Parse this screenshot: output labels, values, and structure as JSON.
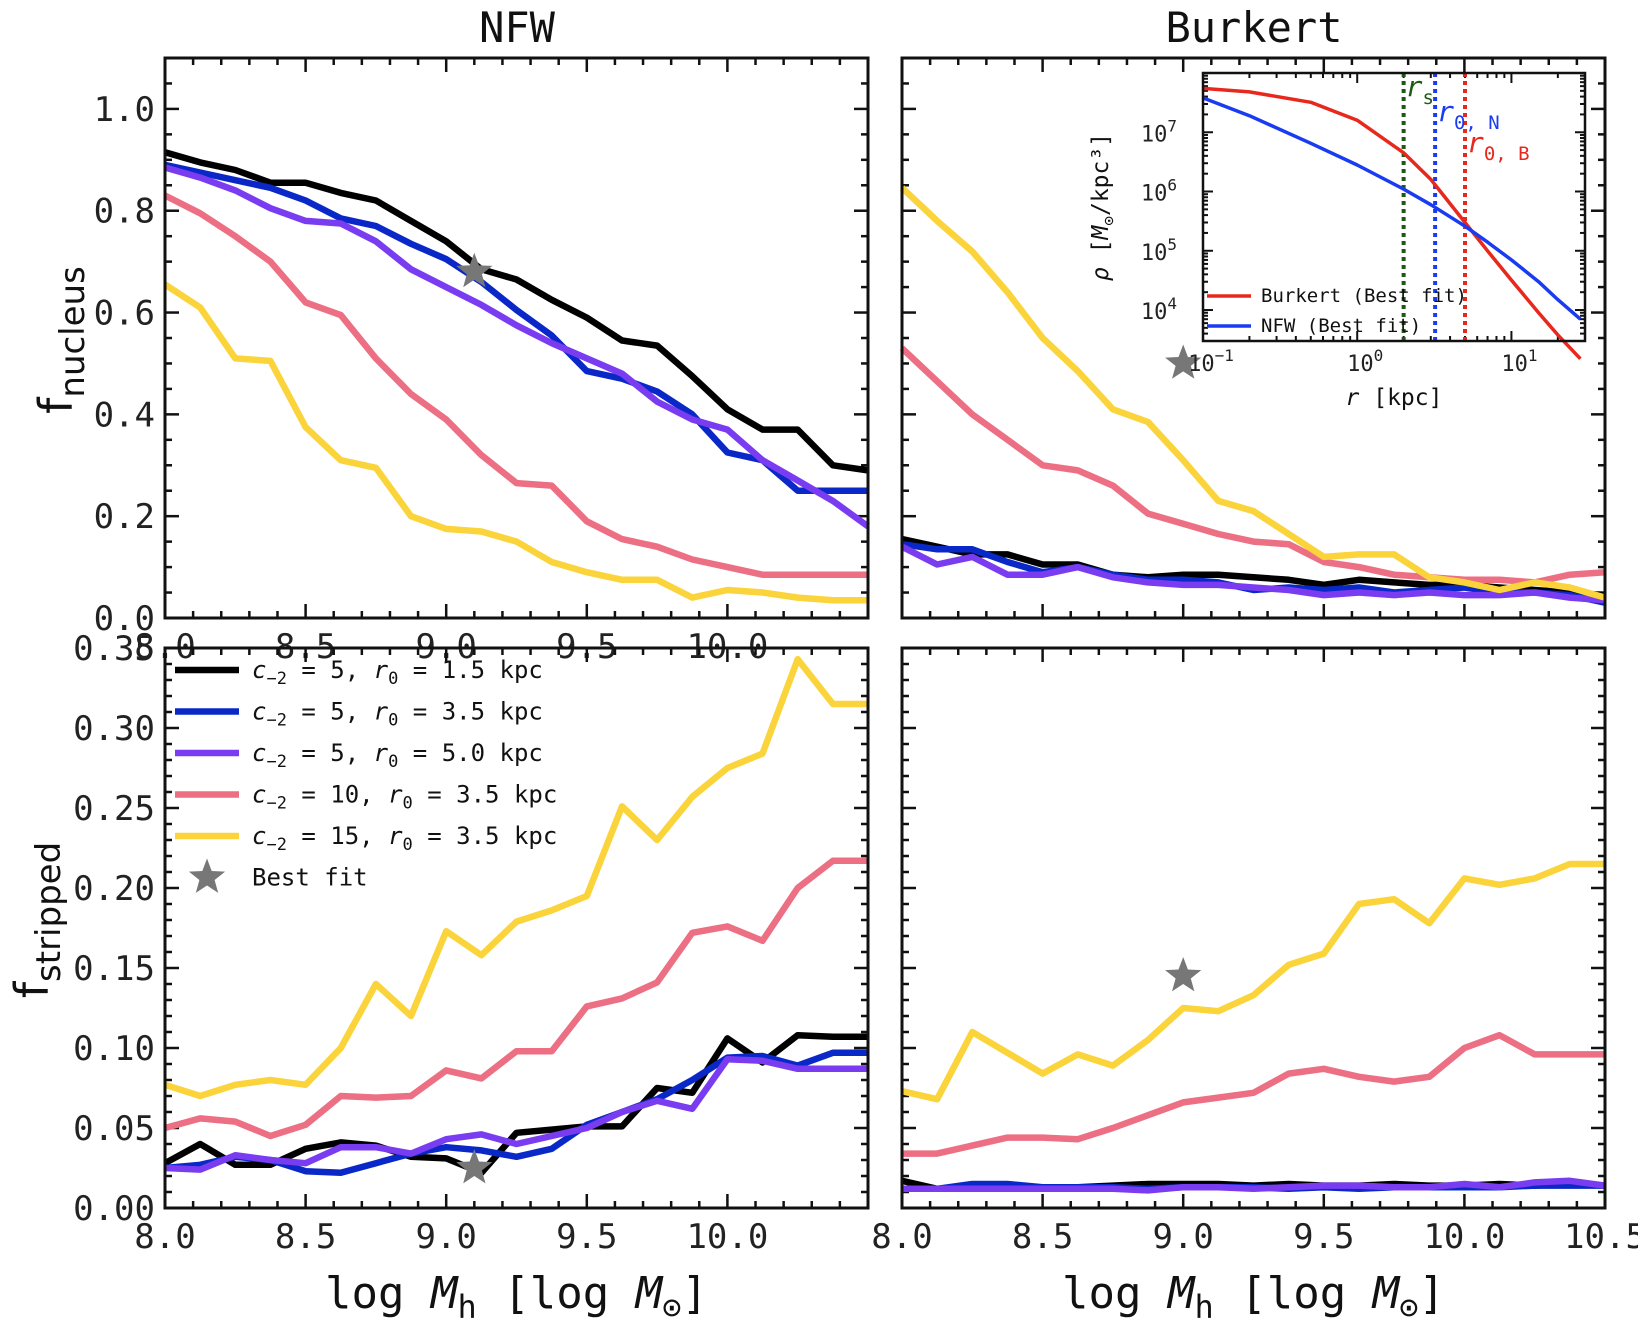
{
  "columns": {
    "left": "NFW",
    "right": "Burkert"
  },
  "axis_labels": {
    "x": "log M_h [log M_⊙]",
    "y_top": "f_nucleus",
    "y_bottom": "f_stripped"
  },
  "colors": {
    "black": "#000000",
    "blue": "#0a28c8",
    "purple": "#7a3cf0",
    "pink": "#ec6f84",
    "yellow": "#fad43a",
    "star": "#777777",
    "inset_red": "#e8281c",
    "inset_blue": "#1a3cf0",
    "inset_green": "#1e5a14"
  },
  "legend": [
    {
      "key": "black",
      "c": "5",
      "r0": "1.5"
    },
    {
      "key": "blue",
      "c": "5",
      "r0": "3.5"
    },
    {
      "key": "purple",
      "c": "5",
      "r0": "5.0"
    },
    {
      "key": "pink",
      "c": "10",
      "r0": "3.5"
    },
    {
      "key": "yellow",
      "c": "15",
      "r0": "3.5"
    },
    {
      "key": "star",
      "label": "Best fit"
    }
  ],
  "chart_data": [
    {
      "id": "nfw-nucleus",
      "type": "line",
      "column": "NFW",
      "ylabel": "f_nucleus",
      "xlim": [
        8.0,
        10.5
      ],
      "ylim": [
        0.0,
        1.1
      ],
      "xticks": [
        "8.0",
        "8.5",
        "9.0",
        "9.5",
        "10.0"
      ],
      "yticks": [
        "0.0",
        "0.2",
        "0.4",
        "0.6",
        "0.8",
        "1.0"
      ],
      "x": [
        8.0,
        8.125,
        8.25,
        8.375,
        8.5,
        8.625,
        8.75,
        8.875,
        9.0,
        9.125,
        9.25,
        9.375,
        9.5,
        9.625,
        9.75,
        9.875,
        10.0,
        10.125,
        10.25,
        10.375,
        10.5
      ],
      "series": [
        {
          "key": "black",
          "values": [
            0.915,
            0.895,
            0.88,
            0.855,
            0.855,
            0.835,
            0.82,
            0.78,
            0.74,
            0.685,
            0.665,
            0.625,
            0.59,
            0.545,
            0.535,
            0.475,
            0.41,
            0.37,
            0.37,
            0.3,
            0.29
          ]
        },
        {
          "key": "blue",
          "values": [
            0.89,
            0.875,
            0.86,
            0.845,
            0.82,
            0.785,
            0.77,
            0.735,
            0.705,
            0.66,
            0.605,
            0.555,
            0.485,
            0.47,
            0.445,
            0.4,
            0.325,
            0.31,
            0.25,
            0.25,
            0.25
          ]
        },
        {
          "key": "purple",
          "values": [
            0.885,
            0.865,
            0.84,
            0.805,
            0.78,
            0.775,
            0.74,
            0.685,
            0.65,
            0.615,
            0.575,
            0.54,
            0.51,
            0.48,
            0.425,
            0.39,
            0.37,
            0.31,
            0.27,
            0.23,
            0.18
          ]
        },
        {
          "key": "pink",
          "values": [
            0.83,
            0.795,
            0.75,
            0.7,
            0.62,
            0.595,
            0.51,
            0.44,
            0.39,
            0.32,
            0.265,
            0.26,
            0.19,
            0.155,
            0.14,
            0.115,
            0.1,
            0.085,
            0.085,
            0.085,
            0.085
          ]
        },
        {
          "key": "yellow",
          "values": [
            0.655,
            0.61,
            0.51,
            0.505,
            0.375,
            0.31,
            0.295,
            0.2,
            0.175,
            0.17,
            0.15,
            0.11,
            0.09,
            0.075,
            0.075,
            0.04,
            0.055,
            0.05,
            0.04,
            0.035,
            0.035
          ]
        }
      ],
      "best_fit": {
        "x": 9.1,
        "y": 0.68
      }
    },
    {
      "id": "burkert-nucleus",
      "type": "line",
      "column": "Burkert",
      "xlim": [
        8.0,
        10.5
      ],
      "ylim": [
        0.0,
        1.1
      ],
      "x": [
        8.0,
        8.125,
        8.25,
        8.375,
        8.5,
        8.625,
        8.75,
        8.875,
        9.0,
        9.125,
        9.25,
        9.375,
        9.5,
        9.625,
        9.75,
        9.875,
        10.0,
        10.125,
        10.25,
        10.375,
        10.5
      ],
      "series": [
        {
          "key": "black",
          "values": [
            0.155,
            0.14,
            0.125,
            0.125,
            0.105,
            0.105,
            0.085,
            0.08,
            0.085,
            0.085,
            0.08,
            0.075,
            0.065,
            0.075,
            0.07,
            0.065,
            0.065,
            0.06,
            0.055,
            0.05,
            0.045
          ]
        },
        {
          "key": "blue",
          "values": [
            0.145,
            0.135,
            0.135,
            0.11,
            0.09,
            0.1,
            0.085,
            0.075,
            0.075,
            0.07,
            0.055,
            0.06,
            0.055,
            0.06,
            0.05,
            0.055,
            0.06,
            0.05,
            0.05,
            0.045,
            0.03
          ]
        },
        {
          "key": "purple",
          "values": [
            0.14,
            0.105,
            0.12,
            0.085,
            0.085,
            0.1,
            0.08,
            0.07,
            0.065,
            0.065,
            0.06,
            0.055,
            0.045,
            0.05,
            0.045,
            0.05,
            0.045,
            0.045,
            0.05,
            0.04,
            0.035
          ]
        },
        {
          "key": "pink",
          "values": [
            0.53,
            0.465,
            0.4,
            0.35,
            0.3,
            0.29,
            0.26,
            0.205,
            0.185,
            0.165,
            0.15,
            0.145,
            0.11,
            0.1,
            0.085,
            0.08,
            0.075,
            0.075,
            0.07,
            0.085,
            0.09
          ]
        },
        {
          "key": "yellow",
          "values": [
            0.845,
            0.78,
            0.72,
            0.64,
            0.55,
            0.485,
            0.41,
            0.385,
            0.31,
            0.23,
            0.21,
            0.165,
            0.12,
            0.125,
            0.125,
            0.08,
            0.07,
            0.055,
            0.07,
            0.06,
            0.04
          ]
        }
      ],
      "best_fit": {
        "x": 9.0,
        "y": 0.5
      }
    },
    {
      "id": "nfw-stripped",
      "type": "line",
      "column": "NFW",
      "ylabel": "f_stripped",
      "xlim": [
        8.0,
        10.5
      ],
      "ylim": [
        0.0,
        0.35
      ],
      "xticks": [
        "8.0",
        "8.5",
        "9.0",
        "9.5",
        "10.0"
      ],
      "yticks": [
        "0.00",
        "0.05",
        "0.10",
        "0.15",
        "0.20",
        "0.25",
        "0.30",
        "0.35"
      ],
      "xlabel": "log M_h [log M_⊙]",
      "x": [
        8.0,
        8.125,
        8.25,
        8.375,
        8.5,
        8.625,
        8.75,
        8.875,
        9.0,
        9.125,
        9.25,
        9.375,
        9.5,
        9.625,
        9.75,
        9.875,
        10.0,
        10.125,
        10.25,
        10.375,
        10.5
      ],
      "series": [
        {
          "key": "black",
          "values": [
            0.028,
            0.04,
            0.027,
            0.027,
            0.037,
            0.041,
            0.039,
            0.032,
            0.031,
            0.022,
            0.047,
            0.049,
            0.051,
            0.051,
            0.075,
            0.072,
            0.106,
            0.091,
            0.108,
            0.107,
            0.107
          ]
        },
        {
          "key": "blue",
          "values": [
            0.025,
            0.027,
            0.032,
            0.03,
            0.023,
            0.022,
            0.028,
            0.034,
            0.038,
            0.036,
            0.032,
            0.037,
            0.052,
            0.06,
            0.068,
            0.08,
            0.094,
            0.095,
            0.089,
            0.097,
            0.097
          ]
        },
        {
          "key": "purple",
          "values": [
            0.025,
            0.024,
            0.033,
            0.03,
            0.028,
            0.038,
            0.038,
            0.034,
            0.043,
            0.046,
            0.04,
            0.045,
            0.05,
            0.06,
            0.067,
            0.062,
            0.093,
            0.092,
            0.087,
            0.087,
            0.087
          ]
        },
        {
          "key": "pink",
          "values": [
            0.05,
            0.056,
            0.054,
            0.045,
            0.052,
            0.07,
            0.069,
            0.07,
            0.086,
            0.081,
            0.098,
            0.098,
            0.126,
            0.131,
            0.141,
            0.172,
            0.176,
            0.167,
            0.2,
            0.217,
            0.217
          ]
        },
        {
          "key": "yellow",
          "values": [
            0.077,
            0.07,
            0.077,
            0.08,
            0.077,
            0.1,
            0.14,
            0.12,
            0.173,
            0.158,
            0.179,
            0.186,
            0.195,
            0.251,
            0.23,
            0.257,
            0.275,
            0.284,
            0.343,
            0.315,
            0.315
          ]
        }
      ],
      "best_fit": {
        "x": 9.1,
        "y": 0.025
      }
    },
    {
      "id": "burkert-stripped",
      "type": "line",
      "column": "Burkert",
      "xlim": [
        8.0,
        10.5
      ],
      "ylim": [
        0.0,
        0.35
      ],
      "xticks": [
        "8.0",
        "8.5",
        "9.0",
        "9.5",
        "10.0",
        "10.5"
      ],
      "xlabel": "log M_h [log M_⊙]",
      "x": [
        8.0,
        8.125,
        8.25,
        8.375,
        8.5,
        8.625,
        8.75,
        8.875,
        9.0,
        9.125,
        9.25,
        9.375,
        9.5,
        9.625,
        9.75,
        9.875,
        10.0,
        10.125,
        10.25,
        10.375,
        10.5
      ],
      "series": [
        {
          "key": "black",
          "values": [
            0.017,
            0.012,
            0.013,
            0.013,
            0.013,
            0.013,
            0.014,
            0.015,
            0.015,
            0.015,
            0.014,
            0.015,
            0.014,
            0.014,
            0.015,
            0.014,
            0.014,
            0.015,
            0.014,
            0.015,
            0.014
          ]
        },
        {
          "key": "blue",
          "values": [
            0.012,
            0.012,
            0.015,
            0.015,
            0.013,
            0.013,
            0.013,
            0.012,
            0.013,
            0.013,
            0.013,
            0.012,
            0.013,
            0.012,
            0.013,
            0.013,
            0.013,
            0.013,
            0.014,
            0.014,
            0.014
          ]
        },
        {
          "key": "purple",
          "values": [
            0.012,
            0.012,
            0.012,
            0.012,
            0.012,
            0.012,
            0.012,
            0.011,
            0.013,
            0.013,
            0.012,
            0.013,
            0.014,
            0.014,
            0.013,
            0.013,
            0.015,
            0.013,
            0.016,
            0.017,
            0.014
          ]
        },
        {
          "key": "pink",
          "values": [
            0.034,
            0.034,
            0.039,
            0.044,
            0.044,
            0.043,
            0.05,
            0.058,
            0.066,
            0.069,
            0.072,
            0.084,
            0.087,
            0.082,
            0.079,
            0.082,
            0.1,
            0.108,
            0.096,
            0.096,
            0.096
          ]
        },
        {
          "key": "yellow",
          "values": [
            0.073,
            0.068,
            0.11,
            0.097,
            0.084,
            0.096,
            0.089,
            0.105,
            0.125,
            0.123,
            0.133,
            0.152,
            0.159,
            0.19,
            0.193,
            0.178,
            0.206,
            0.202,
            0.206,
            0.215,
            0.215
          ]
        }
      ],
      "best_fit": {
        "x": 9.0,
        "y": 0.145
      }
    },
    {
      "id": "inset-density",
      "type": "line",
      "xlabel": "r [kpc]",
      "ylabel": "ρ [M_⊙/kpc³]",
      "xscale": "log",
      "yscale": "log",
      "xlim": [
        0.1,
        30
      ],
      "ylim": [
        3000,
        100000000
      ],
      "xticks": [
        {
          "v": 0.1,
          "base": "10",
          "exp": "−1"
        },
        {
          "v": 1,
          "base": "10",
          "exp": "0"
        },
        {
          "v": 10,
          "base": "10",
          "exp": "1"
        }
      ],
      "yticks": [
        {
          "v": 10000,
          "base": "10",
          "exp": "4"
        },
        {
          "v": 100000,
          "base": "10",
          "exp": "5"
        },
        {
          "v": 1000000,
          "base": "10",
          "exp": "6"
        },
        {
          "v": 10000000,
          "base": "10",
          "exp": "7"
        }
      ],
      "series": [
        {
          "name": "Burkert (Best fit)",
          "key": "inset_red",
          "x": [
            0.1,
            0.2,
            0.5,
            1,
            2,
            3,
            5,
            7,
            10,
            15,
            20,
            28
          ],
          "y": [
            55000000,
            48000000,
            32000000,
            16000000,
            4500000,
            1600000,
            300000,
            100000,
            32000,
            9000,
            3800,
            1500
          ]
        },
        {
          "name": "NFW (Best fit)",
          "key": "inset_blue",
          "x": [
            0.1,
            0.2,
            0.5,
            1,
            2,
            3,
            5,
            7,
            10,
            15,
            20,
            28
          ],
          "y": [
            38000000,
            19000000,
            6500000,
            2800000,
            1100000,
            600000,
            260000,
            140000,
            70000,
            30000,
            15000,
            7000
          ]
        }
      ],
      "vlines": [
        {
          "x": 2.0,
          "key": "inset_green",
          "label": "r",
          "sub": "s"
        },
        {
          "x": 3.2,
          "key": "inset_blue",
          "label": "r",
          "sub": "0, N"
        },
        {
          "x": 5.0,
          "key": "inset_red",
          "label": "r",
          "sub": "0, B"
        }
      ]
    }
  ]
}
